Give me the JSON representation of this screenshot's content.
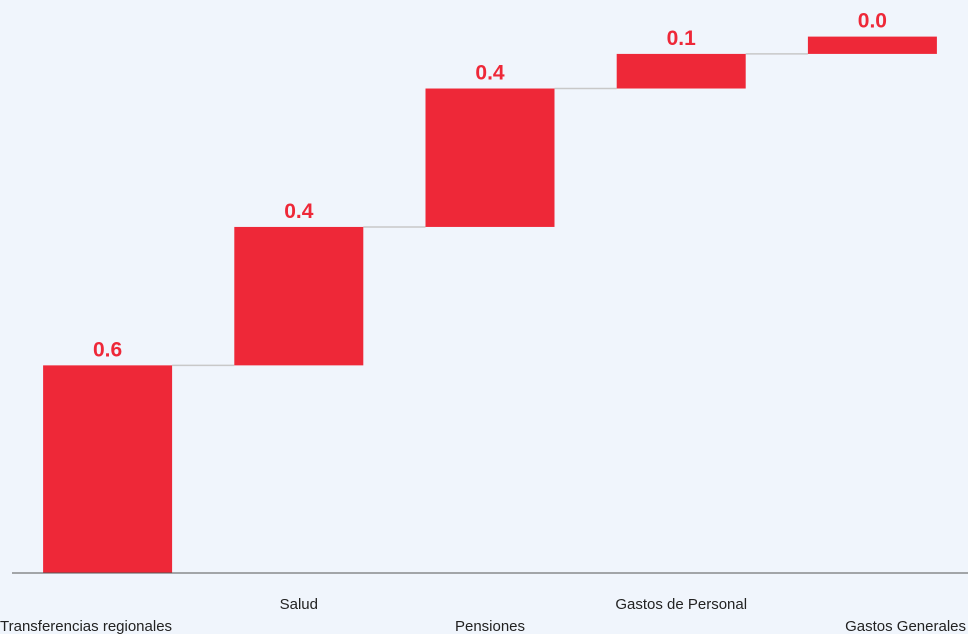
{
  "chart_data": {
    "type": "waterfall",
    "title": "",
    "xlabel": "",
    "ylabel": "",
    "categories": [
      "Transferencias regionales",
      "Salud",
      "Pensiones",
      "Gastos de Personal",
      "Gastos Generales"
    ],
    "values": [
      0.6,
      0.4,
      0.4,
      0.1,
      0.0
    ],
    "value_labels": [
      "0.6",
      "0.4",
      "0.4",
      "0.1",
      "0.0"
    ],
    "cumulative_ends": [
      0.6,
      1.0,
      1.4,
      1.5,
      1.55
    ],
    "ylim": [
      0,
      1.65
    ],
    "grid": false,
    "legend": "none",
    "colors": {
      "bar": "#ee2838",
      "label": "#ee2838",
      "connector": "#c8c8c8",
      "axis": "#555555",
      "background": "#f0f5fc"
    }
  }
}
